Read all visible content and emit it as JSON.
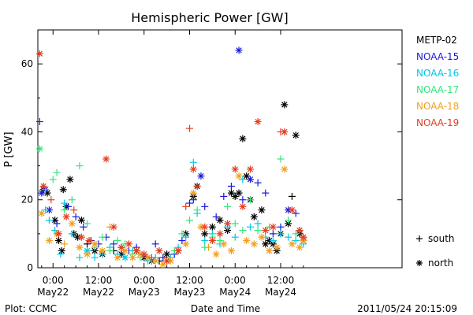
{
  "chart_data": {
    "type": "scatter",
    "title": "Hemispheric Power [GW]",
    "ylabel": "P [GW]",
    "xlabel": "Date and Time",
    "ylim": [
      0,
      70
    ],
    "yticks": [
      0,
      20,
      40,
      60
    ],
    "xlim": [
      -4,
      92
    ],
    "x_unit": "hours since 2011-05-22 00:00 UT",
    "xticks": [
      {
        "x": 0,
        "time": "0:00",
        "date": "May22"
      },
      {
        "x": 12,
        "time": "12:00",
        "date": "May22"
      },
      {
        "x": 24,
        "time": "0:00",
        "date": "May23"
      },
      {
        "x": 36,
        "time": "12:00",
        "date": "May23"
      },
      {
        "x": 48,
        "time": "0:00",
        "date": "May24"
      },
      {
        "x": 60,
        "time": "12:00",
        "date": "May24"
      }
    ],
    "marker_legend": [
      {
        "symbol": "+",
        "label": "south"
      },
      {
        "symbol": "*",
        "label": "north"
      }
    ],
    "series": [
      {
        "name": "METP-02",
        "color": "#000000",
        "points": [
          [
            -2.5,
            23,
            "*"
          ],
          [
            -1.5,
            22,
            "*"
          ],
          [
            0.5,
            14,
            "*"
          ],
          [
            1.5,
            8,
            "*"
          ],
          [
            2.3,
            5,
            "*"
          ],
          [
            2.7,
            23,
            "*"
          ],
          [
            3.5,
            18,
            "*"
          ],
          [
            4.5,
            26,
            "*"
          ],
          [
            5.5,
            10,
            "*"
          ],
          [
            6.5,
            9,
            "*"
          ],
          [
            7.5,
            14,
            "*"
          ],
          [
            9,
            7,
            "+"
          ],
          [
            11,
            5,
            "*"
          ],
          [
            13,
            4,
            "*"
          ],
          [
            16,
            5,
            "+"
          ],
          [
            18,
            4,
            "*"
          ],
          [
            22,
            5,
            "*"
          ],
          [
            24,
            3,
            "*"
          ],
          [
            26,
            2,
            "*"
          ],
          [
            28,
            2,
            "+"
          ],
          [
            30,
            4,
            "*"
          ],
          [
            33,
            5,
            "*"
          ],
          [
            35,
            10,
            "*"
          ],
          [
            37,
            21,
            "*"
          ],
          [
            38,
            24,
            "*"
          ],
          [
            40,
            10,
            "*"
          ],
          [
            42,
            12,
            "*"
          ],
          [
            44,
            14,
            "*"
          ],
          [
            46,
            11,
            "*"
          ],
          [
            47,
            22,
            "*"
          ],
          [
            48,
            21,
            "*"
          ],
          [
            49,
            22,
            "*"
          ],
          [
            50,
            38,
            "*"
          ],
          [
            51,
            27,
            "*"
          ],
          [
            52,
            20,
            "*"
          ],
          [
            53,
            15,
            "*"
          ],
          [
            55,
            17,
            "*"
          ],
          [
            56,
            7,
            "*"
          ],
          [
            57,
            8,
            "*"
          ],
          [
            58,
            7,
            "*"
          ],
          [
            59,
            5,
            "*"
          ],
          [
            60,
            10,
            "*"
          ],
          [
            61,
            48,
            "*"
          ],
          [
            62,
            13,
            "*"
          ],
          [
            63,
            21,
            "+"
          ],
          [
            64,
            39,
            "*"
          ],
          [
            65,
            10,
            "*"
          ],
          [
            66,
            8,
            "*"
          ]
        ]
      },
      {
        "name": "NOAA-15",
        "color": "#1a1adf",
        "points": [
          [
            -3.5,
            43,
            "+"
          ],
          [
            -3,
            22,
            "*"
          ],
          [
            -2,
            23,
            "*"
          ],
          [
            -1,
            17,
            "*"
          ],
          [
            1,
            13,
            "+"
          ],
          [
            4,
            18,
            "+"
          ],
          [
            6,
            15,
            "+"
          ],
          [
            8,
            12,
            "+"
          ],
          [
            10,
            8,
            "+"
          ],
          [
            12,
            7,
            "+"
          ],
          [
            14,
            9,
            "+"
          ],
          [
            16,
            7,
            "+"
          ],
          [
            18,
            6,
            "+"
          ],
          [
            20,
            5,
            "+"
          ],
          [
            22,
            6,
            "+"
          ],
          [
            25,
            3,
            "+"
          ],
          [
            27,
            7,
            "+"
          ],
          [
            29,
            3,
            "+"
          ],
          [
            32,
            4,
            "+"
          ],
          [
            34,
            8,
            "+"
          ],
          [
            36,
            19,
            "+"
          ],
          [
            37,
            20,
            "+"
          ],
          [
            39,
            27,
            "*"
          ],
          [
            40,
            18,
            "+"
          ],
          [
            43,
            15,
            "+"
          ],
          [
            45,
            21,
            "+"
          ],
          [
            47,
            24,
            "+"
          ],
          [
            49,
            64,
            "*"
          ],
          [
            50,
            20,
            "+"
          ],
          [
            52,
            26,
            "*"
          ],
          [
            54,
            25,
            "+"
          ],
          [
            56,
            22,
            "+"
          ],
          [
            58,
            10,
            "+"
          ],
          [
            60,
            12,
            "+"
          ],
          [
            62,
            17,
            "*"
          ],
          [
            64,
            16,
            "+"
          ],
          [
            65,
            11,
            "+"
          ]
        ]
      },
      {
        "name": "NOAA-16",
        "color": "#00c8e6",
        "points": [
          [
            -2,
            17,
            "+"
          ],
          [
            -1,
            14,
            "+"
          ],
          [
            0.5,
            11,
            "+"
          ],
          [
            2,
            4,
            "+"
          ],
          [
            3,
            19,
            "+"
          ],
          [
            5,
            10,
            "+"
          ],
          [
            7,
            3,
            "+"
          ],
          [
            9,
            5,
            "*"
          ],
          [
            11,
            3,
            "+"
          ],
          [
            13,
            4,
            "+"
          ],
          [
            15,
            6,
            "+"
          ],
          [
            17,
            4,
            "+"
          ],
          [
            19,
            3,
            "*"
          ],
          [
            21,
            5,
            "+"
          ],
          [
            23,
            4,
            "+"
          ],
          [
            25,
            2,
            "+"
          ],
          [
            27,
            3,
            "+"
          ],
          [
            31,
            3,
            "+"
          ],
          [
            33,
            6,
            "+"
          ],
          [
            35,
            9,
            "+"
          ],
          [
            37,
            31,
            "+"
          ],
          [
            38,
            16,
            "+"
          ],
          [
            40,
            8,
            "+"
          ],
          [
            42,
            10,
            "+"
          ],
          [
            44,
            7,
            "+"
          ],
          [
            46,
            12,
            "+"
          ],
          [
            48,
            9,
            "+"
          ],
          [
            50,
            26,
            "+"
          ],
          [
            52,
            12,
            "+"
          ],
          [
            54,
            13,
            "+"
          ],
          [
            56,
            9,
            "+"
          ],
          [
            58,
            8,
            "+"
          ],
          [
            60,
            10,
            "+"
          ],
          [
            62,
            9,
            "+"
          ],
          [
            64,
            8,
            "+"
          ],
          [
            66,
            7,
            "+"
          ]
        ]
      },
      {
        "name": "NOAA-17",
        "color": "#33e67a",
        "points": [
          [
            -3.5,
            35,
            "*"
          ],
          [
            -2,
            23,
            "+"
          ],
          [
            0,
            26,
            "+"
          ],
          [
            1,
            28,
            "+"
          ],
          [
            3,
            17,
            "+"
          ],
          [
            5,
            20,
            "+"
          ],
          [
            7,
            30,
            "+"
          ],
          [
            9,
            13,
            "+"
          ],
          [
            11,
            6,
            "+"
          ],
          [
            13,
            9,
            "+"
          ],
          [
            15,
            5,
            "+"
          ],
          [
            17,
            8,
            "+"
          ],
          [
            19,
            7,
            "+"
          ],
          [
            21,
            4,
            "+"
          ],
          [
            23,
            3,
            "+"
          ],
          [
            26,
            2,
            "+"
          ],
          [
            30,
            2,
            "+"
          ],
          [
            32,
            5,
            "+"
          ],
          [
            34,
            10,
            "+"
          ],
          [
            36,
            14,
            "+"
          ],
          [
            38,
            17,
            "+"
          ],
          [
            40,
            6,
            "+"
          ],
          [
            42,
            9,
            "+"
          ],
          [
            44,
            8,
            "+"
          ],
          [
            46,
            18,
            "+"
          ],
          [
            48,
            13,
            "+"
          ],
          [
            50,
            11,
            "+"
          ],
          [
            52,
            20,
            "+"
          ],
          [
            54,
            11,
            "+"
          ],
          [
            57,
            12,
            "+"
          ],
          [
            60,
            32,
            "+"
          ],
          [
            62,
            14,
            "+"
          ],
          [
            64,
            10,
            "+"
          ],
          [
            66,
            9,
            "+"
          ]
        ]
      },
      {
        "name": "NOAA-18",
        "color": "#f0a020",
        "points": [
          [
            -3,
            16,
            "*"
          ],
          [
            -1,
            8,
            "*"
          ],
          [
            1,
            10,
            "*"
          ],
          [
            3,
            7,
            "+"
          ],
          [
            5,
            13,
            "*"
          ],
          [
            7,
            6,
            "*"
          ],
          [
            9,
            4,
            "*"
          ],
          [
            11,
            7,
            "*"
          ],
          [
            13,
            5,
            "*"
          ],
          [
            15,
            12,
            "+"
          ],
          [
            17,
            3,
            "*"
          ],
          [
            19,
            5,
            "*"
          ],
          [
            21,
            3,
            "*"
          ],
          [
            23,
            4,
            "*"
          ],
          [
            25,
            3,
            "*"
          ],
          [
            27,
            2,
            "*"
          ],
          [
            29,
            1,
            "*"
          ],
          [
            31,
            2,
            "*"
          ],
          [
            33,
            5,
            "+"
          ],
          [
            35,
            7,
            "*"
          ],
          [
            37,
            22,
            "*"
          ],
          [
            39,
            12,
            "*"
          ],
          [
            41,
            6,
            "+"
          ],
          [
            43,
            4,
            "*"
          ],
          [
            45,
            7,
            "*"
          ],
          [
            47,
            5,
            "*"
          ],
          [
            49,
            27,
            "*"
          ],
          [
            51,
            8,
            "*"
          ],
          [
            53,
            7,
            "*"
          ],
          [
            55,
            9,
            "*"
          ],
          [
            57,
            5,
            "*"
          ],
          [
            59,
            6,
            "*"
          ],
          [
            61,
            29,
            "*"
          ],
          [
            63,
            7,
            "*"
          ],
          [
            65,
            6,
            "*"
          ],
          [
            66,
            8,
            "*"
          ]
        ]
      },
      {
        "name": "NOAA-19",
        "color": "#e63c1e",
        "points": [
          [
            -3.5,
            63,
            "*"
          ],
          [
            -2.5,
            24,
            "*"
          ],
          [
            -0.5,
            20,
            "+"
          ],
          [
            1.5,
            10,
            "*"
          ],
          [
            3.5,
            15,
            "*"
          ],
          [
            5.5,
            17,
            "+"
          ],
          [
            7.5,
            9,
            "*"
          ],
          [
            9.5,
            8,
            "*"
          ],
          [
            14,
            32,
            "*"
          ],
          [
            16,
            12,
            "*"
          ],
          [
            18,
            6,
            "*"
          ],
          [
            20,
            7,
            "*"
          ],
          [
            22,
            5,
            "*"
          ],
          [
            24,
            4,
            "*"
          ],
          [
            26,
            3,
            "+"
          ],
          [
            28,
            5,
            "*"
          ],
          [
            30,
            2,
            "*"
          ],
          [
            33,
            5,
            "*"
          ],
          [
            35,
            18,
            "+"
          ],
          [
            36,
            41,
            "+"
          ],
          [
            37,
            29,
            "*"
          ],
          [
            38,
            24,
            "+"
          ],
          [
            40,
            12,
            "*"
          ],
          [
            42,
            8,
            "*"
          ],
          [
            44,
            10,
            "*"
          ],
          [
            46,
            13,
            "*"
          ],
          [
            48,
            29,
            "*"
          ],
          [
            50,
            18,
            "*"
          ],
          [
            52,
            29,
            "*"
          ],
          [
            54,
            43,
            "*"
          ],
          [
            56,
            11,
            "*"
          ],
          [
            58,
            12,
            "*"
          ],
          [
            60,
            40,
            "+"
          ],
          [
            61,
            40,
            "*"
          ],
          [
            63,
            17,
            "*"
          ],
          [
            65,
            11,
            "*"
          ],
          [
            66,
            9,
            "*"
          ]
        ]
      }
    ]
  },
  "footer": {
    "left": "Plot: CCMC",
    "center": "Date and Time",
    "right": "2011/05/24 20:15:09"
  }
}
